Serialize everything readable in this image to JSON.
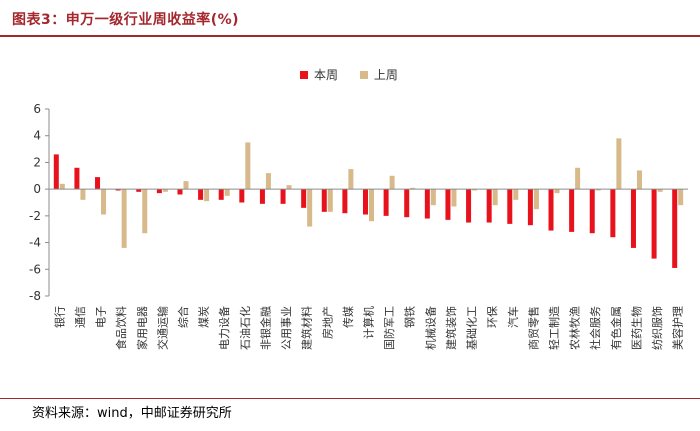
{
  "header": {
    "title": "图表3：申万一级行业周收益率(%)"
  },
  "footer": {
    "source": "资料来源：wind，中邮证券研究所"
  },
  "colors": {
    "current": "#e8121d",
    "previous": "#d8b98a",
    "accent": "#a4272d",
    "axis": "#8c8c8c"
  },
  "chart_data": {
    "type": "bar",
    "title": "",
    "xlabel": "",
    "ylabel": "",
    "ylim": [
      -8,
      6
    ],
    "yticks": [
      6,
      4,
      2,
      0,
      -2,
      -4,
      -6,
      -8
    ],
    "grid": false,
    "legend_position": "top-center",
    "categories": [
      "银行",
      "通信",
      "电子",
      "食品饮料",
      "家用电器",
      "交通运输",
      "综合",
      "煤炭",
      "电力设备",
      "石油石化",
      "非银金融",
      "公用事业",
      "建筑材料",
      "房地产",
      "传媒",
      "计算机",
      "国防军工",
      "钢铁",
      "机械设备",
      "建筑装饰",
      "基础化工",
      "环保",
      "汽车",
      "商贸零售",
      "轻工制造",
      "农林牧渔",
      "社会服务",
      "有色金属",
      "医药生物",
      "纺织服饰",
      "美容护理"
    ],
    "series": [
      {
        "name": "本周",
        "values": [
          2.6,
          1.6,
          0.9,
          -0.1,
          -0.2,
          -0.3,
          -0.4,
          -0.8,
          -0.8,
          -1.0,
          -1.1,
          -1.1,
          -1.4,
          -1.7,
          -1.8,
          -1.9,
          -2.0,
          -2.1,
          -2.2,
          -2.3,
          -2.5,
          -2.5,
          -2.6,
          -2.7,
          -3.1,
          -3.2,
          -3.3,
          -3.6,
          -4.4,
          -5.2,
          -5.9
        ]
      },
      {
        "name": "上周",
        "values": [
          0.4,
          -0.8,
          -1.9,
          -4.4,
          -3.3,
          -0.2,
          0.6,
          -0.9,
          -0.5,
          3.5,
          1.2,
          0.3,
          -2.8,
          -1.7,
          1.5,
          -2.4,
          1.0,
          0.1,
          -1.2,
          -1.3,
          -0.1,
          -1.2,
          -0.8,
          -1.5,
          -0.3,
          1.6,
          -0.1,
          3.8,
          1.4,
          -0.2,
          -1.2
        ]
      }
    ]
  }
}
